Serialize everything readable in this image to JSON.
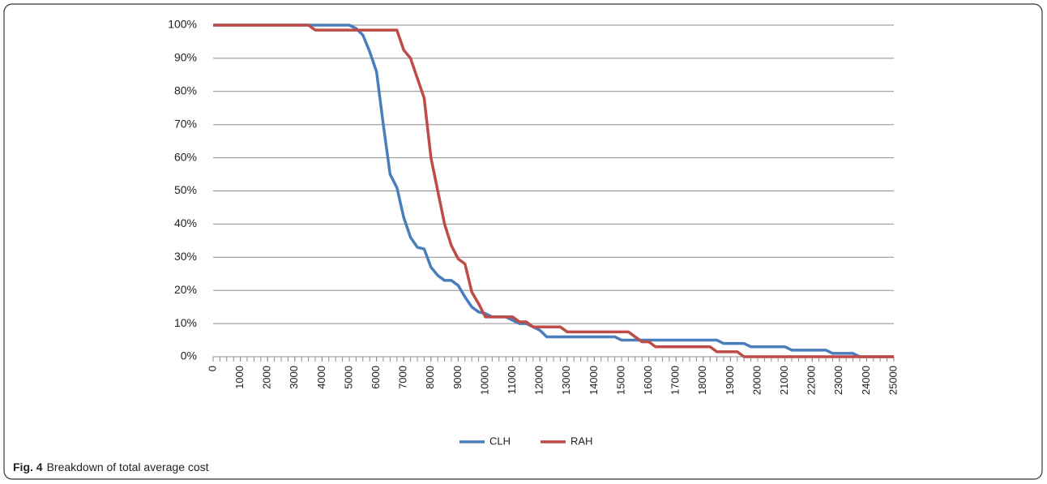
{
  "chart_data": {
    "type": "line",
    "x": [
      0,
      250,
      500,
      750,
      1000,
      1250,
      1500,
      1750,
      2000,
      2250,
      2500,
      2750,
      3000,
      3250,
      3500,
      3750,
      4000,
      4250,
      4500,
      4750,
      5000,
      5250,
      5500,
      5750,
      6000,
      6250,
      6500,
      6750,
      7000,
      7250,
      7500,
      7750,
      8000,
      8250,
      8500,
      8750,
      9000,
      9250,
      9500,
      9750,
      10000,
      10250,
      10500,
      10750,
      11000,
      11250,
      11500,
      11750,
      12000,
      12250,
      12500,
      12750,
      13000,
      13250,
      13500,
      13750,
      14000,
      14250,
      14500,
      14750,
      15000,
      15250,
      15500,
      15750,
      16000,
      16250,
      16500,
      16750,
      17000,
      17250,
      17500,
      17750,
      18000,
      18250,
      18500,
      18750,
      19000,
      19250,
      19500,
      19750,
      20000,
      20250,
      20500,
      20750,
      21000,
      21250,
      21500,
      21750,
      22000,
      22250,
      22500,
      22750,
      23000,
      23250,
      23500,
      23750,
      24000,
      24250,
      24500,
      24750,
      25000
    ],
    "series": [
      {
        "name": "CLH",
        "color": "#4a7ebb",
        "values": [
          100,
          100,
          100,
          100,
          100,
          100,
          100,
          100,
          100,
          100,
          100,
          100,
          100,
          100,
          100,
          100,
          100,
          100,
          100,
          100,
          100,
          99,
          97,
          92,
          86,
          70,
          55,
          51,
          42,
          36,
          33,
          32.5,
          27,
          24.5,
          23,
          23,
          21.5,
          18,
          15,
          13.5,
          13,
          12,
          12,
          12,
          11,
          10,
          10,
          9,
          8,
          6,
          6,
          6,
          6,
          6,
          6,
          6,
          6,
          6,
          6,
          6,
          5,
          5,
          5,
          5,
          5,
          5,
          5,
          5,
          5,
          5,
          5,
          5,
          5,
          5,
          5,
          4,
          4,
          4,
          4,
          3,
          3,
          3,
          3,
          3,
          3,
          2,
          2,
          2,
          2,
          2,
          2,
          1,
          1,
          1,
          1,
          0,
          0,
          0,
          0,
          0,
          0
        ]
      },
      {
        "name": "RAH",
        "color": "#be4b48",
        "values": [
          100,
          100,
          100,
          100,
          100,
          100,
          100,
          100,
          100,
          100,
          100,
          100,
          100,
          100,
          100,
          98.5,
          98.5,
          98.5,
          98.5,
          98.5,
          98.5,
          98.5,
          98.5,
          98.5,
          98.5,
          98.5,
          98.5,
          98.5,
          92.5,
          90,
          84,
          78,
          60,
          50,
          40,
          33.5,
          29.5,
          28,
          19.5,
          16,
          12,
          12,
          12,
          12,
          12,
          10.5,
          10.5,
          9,
          9,
          9,
          9,
          9,
          7.5,
          7.5,
          7.5,
          7.5,
          7.5,
          7.5,
          7.5,
          7.5,
          7.5,
          7.5,
          6,
          4.5,
          4.5,
          3,
          3,
          3,
          3,
          3,
          3,
          3,
          3,
          3,
          1.5,
          1.5,
          1.5,
          1.5,
          0,
          0,
          0,
          0,
          0,
          0,
          0,
          0,
          0,
          0,
          0,
          0,
          0,
          0,
          0,
          0,
          0,
          0,
          0,
          0,
          0,
          0,
          0
        ]
      }
    ],
    "xlim": [
      0,
      25000
    ],
    "xticks": [
      0,
      1000,
      2000,
      3000,
      4000,
      5000,
      6000,
      7000,
      8000,
      9000,
      10000,
      11000,
      12000,
      13000,
      14000,
      15000,
      16000,
      17000,
      18000,
      19000,
      20000,
      21000,
      22000,
      23000,
      24000,
      25000
    ],
    "ylim": [
      0,
      100
    ],
    "yticks": [
      {
        "value": 0,
        "label": "0%"
      },
      {
        "value": 10,
        "label": "10%"
      },
      {
        "value": 20,
        "label": "20%"
      },
      {
        "value": 30,
        "label": "30%"
      },
      {
        "value": 40,
        "label": "40%"
      },
      {
        "value": 50,
        "label": "50%"
      },
      {
        "value": 60,
        "label": "60%"
      },
      {
        "value": 70,
        "label": "70%"
      },
      {
        "value": 80,
        "label": "80%"
      },
      {
        "value": 90,
        "label": "90%"
      },
      {
        "value": 100,
        "label": "100%"
      }
    ],
    "grid": true,
    "legend": "bottom"
  },
  "caption": {
    "label": "Fig. 4",
    "text": "Breakdown of total average cost"
  }
}
